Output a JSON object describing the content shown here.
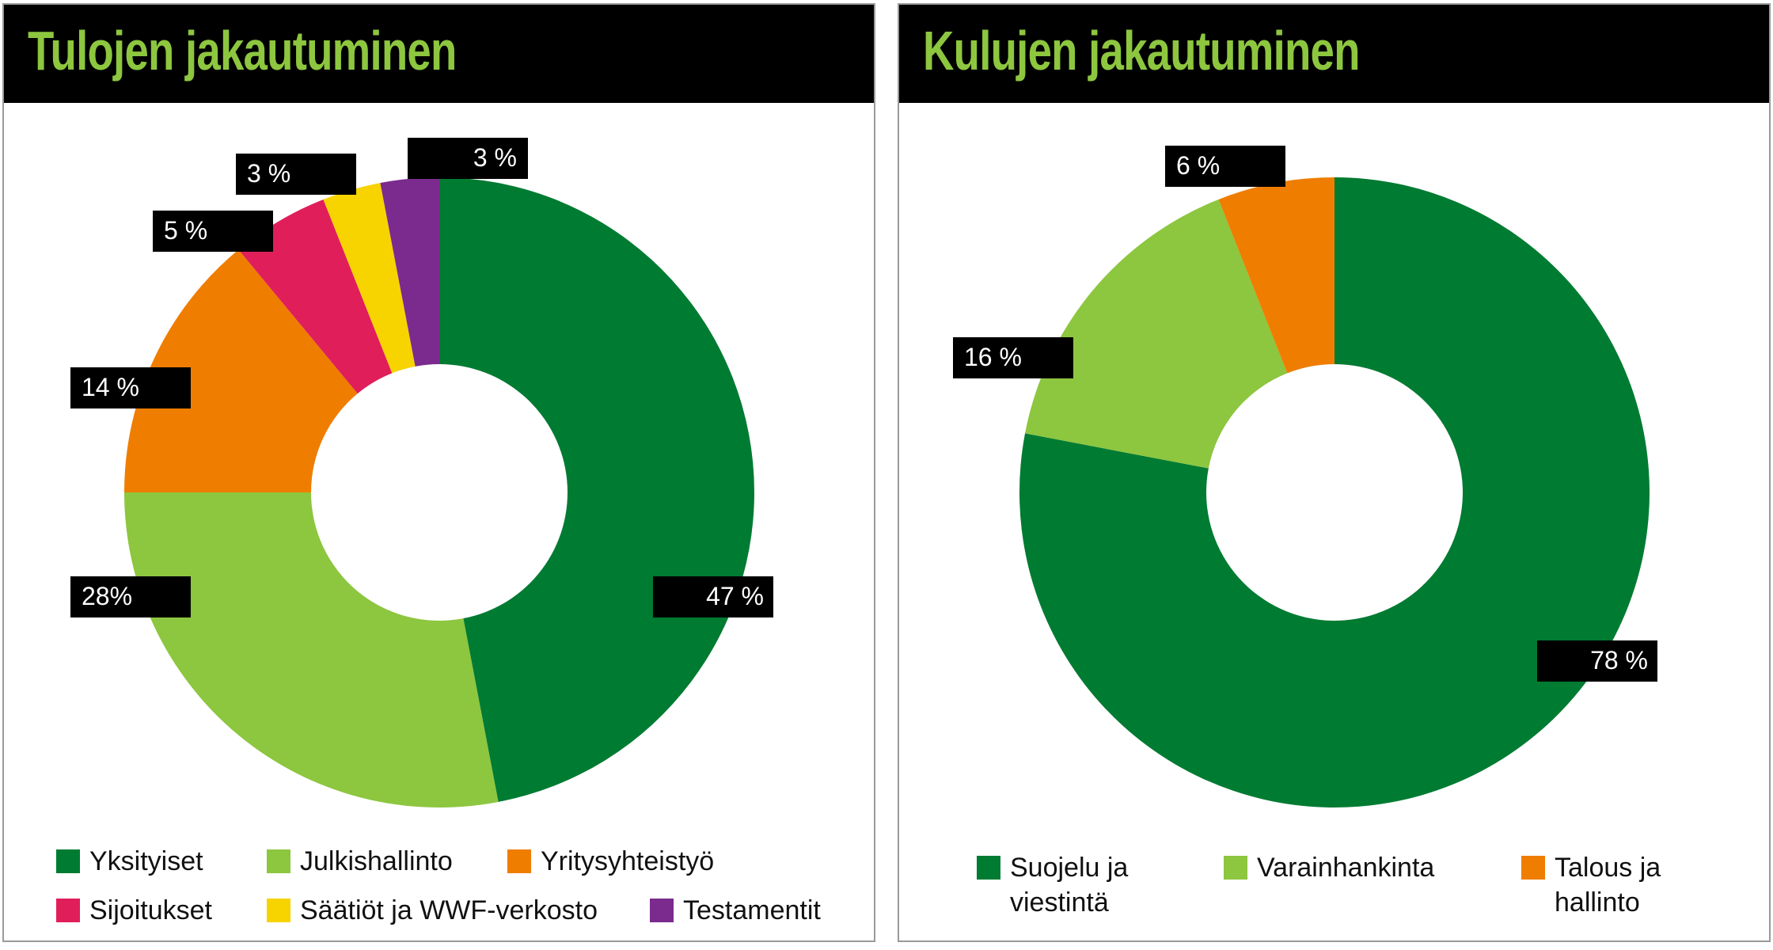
{
  "colors": {
    "dark_green": "#007b32",
    "light_green": "#8dc63f",
    "orange": "#ef7d00",
    "crimson": "#e01e5a",
    "yellow": "#f7d300",
    "purple": "#7b2a8e",
    "title_green": "#8dc63f",
    "header_bg": "#000000"
  },
  "chart_data": [
    {
      "type": "pie",
      "title": "Tulojen jakautuminen",
      "donut": true,
      "categories": [
        "Yksityiset",
        "Julkishallinto",
        "Yritysyhteistyö",
        "Sijoitukset",
        "Säätiöt ja WWF-verkosto",
        "Testamentit"
      ],
      "values": [
        47,
        28,
        14,
        5,
        3,
        3
      ],
      "data_labels": [
        "47 %",
        "28%",
        "14 %",
        "5 %",
        "3 %",
        "3 %"
      ],
      "colors": [
        "#007b32",
        "#8dc63f",
        "#ef7d00",
        "#e01e5a",
        "#f7d300",
        "#7b2a8e"
      ],
      "legend_position": "bottom"
    },
    {
      "type": "pie",
      "title": "Kulujen jakautuminen",
      "donut": true,
      "categories": [
        "Suojelu ja viestintä",
        "Varainhankinta",
        "Talous ja hallinto"
      ],
      "values": [
        78,
        16,
        6
      ],
      "data_labels": [
        "78 %",
        "16 %",
        "6 %"
      ],
      "colors": [
        "#007b32",
        "#8dc63f",
        "#ef7d00"
      ],
      "legend_position": "bottom"
    }
  ]
}
